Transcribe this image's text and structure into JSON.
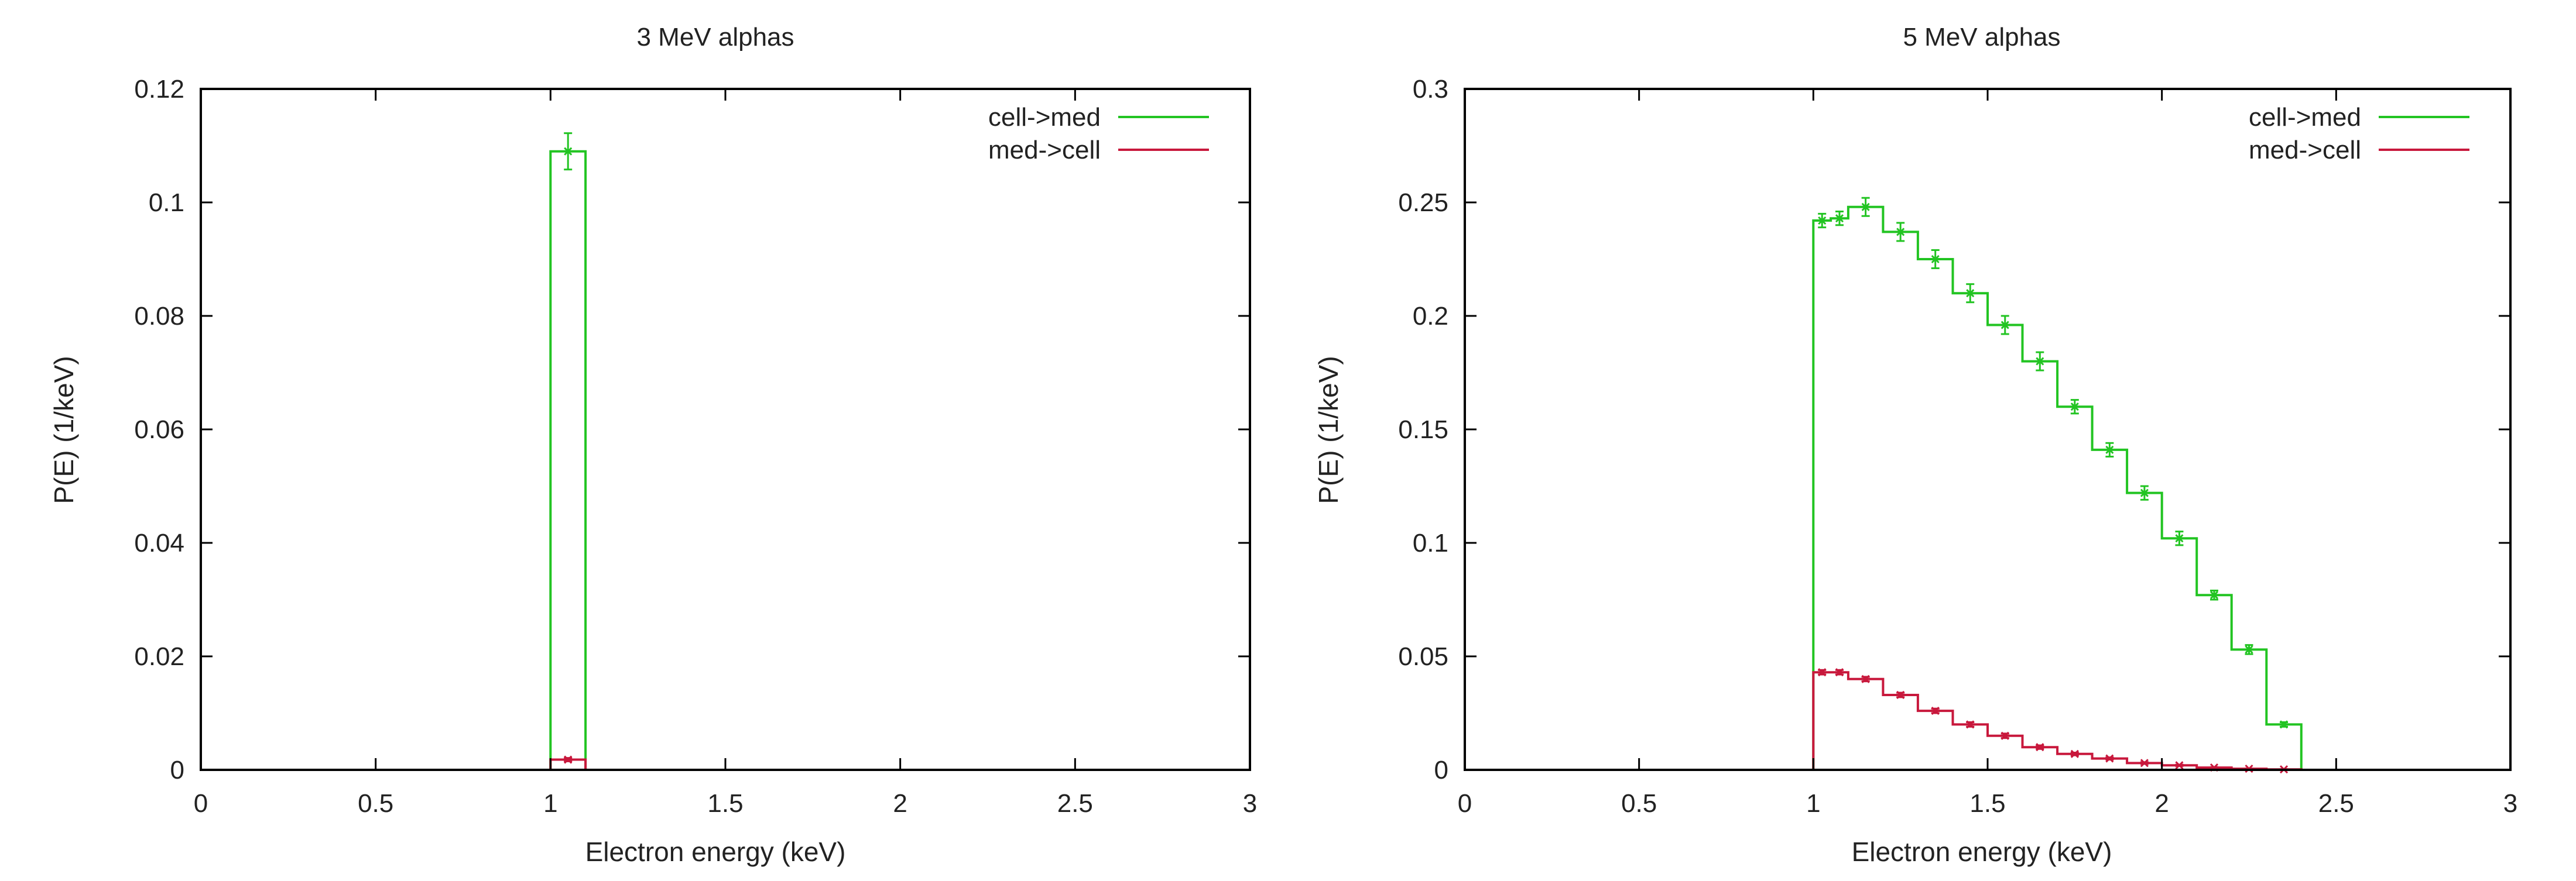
{
  "colors": {
    "cell_to_med": "#22c422",
    "med_to_cell": "#c8183c",
    "axis": "#000000",
    "background": "#ffffff"
  },
  "chart_data": [
    {
      "type": "line",
      "style": "histogram-steps-with-errorbars",
      "title": "3 MeV alphas",
      "xlabel": "Electron energy (keV)",
      "ylabel": "P(E) (1/keV)",
      "xlim": [
        0,
        3
      ],
      "ylim": [
        0,
        0.12
      ],
      "xticks": [
        "0",
        "0.5",
        "1",
        "1.5",
        "2",
        "2.5",
        "3"
      ],
      "yticks": [
        "0",
        "0.02",
        "0.04",
        "0.06",
        "0.08",
        "0.1",
        "0.12"
      ],
      "legend_position": "top-right",
      "grid": false,
      "series": [
        {
          "name": "cell->med",
          "color_key": "cell_to_med",
          "bins": [
            {
              "x0": 0,
              "x1": 1,
              "y": 0
            },
            {
              "x0": 1,
              "x1": 1.1,
              "y": 0.109,
              "err": 0.0032,
              "mid": 1.05
            },
            {
              "x0": 1.1,
              "x1": 3,
              "y": 0
            }
          ]
        },
        {
          "name": "med->cell",
          "color_key": "med_to_cell",
          "bins": [
            {
              "x0": 0,
              "x1": 1,
              "y": 0
            },
            {
              "x0": 1,
              "x1": 1.1,
              "y": 0.0018,
              "err": 0.0003,
              "mid": 1.05
            },
            {
              "x0": 1.1,
              "x1": 3,
              "y": 0
            }
          ]
        }
      ]
    },
    {
      "type": "line",
      "style": "histogram-steps-with-errorbars",
      "title": "5 MeV alphas",
      "xlabel": "Electron energy (keV)",
      "ylabel": "P(E) (1/keV)",
      "xlim": [
        0,
        3
      ],
      "ylim": [
        0,
        0.3
      ],
      "xticks": [
        "0",
        "0.5",
        "1",
        "1.5",
        "2",
        "2.5",
        "3"
      ],
      "yticks": [
        "0",
        "0.05",
        "0.1",
        "0.15",
        "0.2",
        "0.25",
        "0.3"
      ],
      "legend_position": "top-right",
      "grid": false,
      "series": [
        {
          "name": "cell->med",
          "color_key": "cell_to_med",
          "bins": [
            {
              "x0": 0,
              "x1": 1.0,
              "y": 0
            },
            {
              "x0": 1.0,
              "x1": 1.05,
              "y": 0.242,
              "err": 0.003
            },
            {
              "x0": 1.05,
              "x1": 1.1,
              "y": 0.243,
              "err": 0.003
            },
            {
              "x0": 1.1,
              "x1": 1.2,
              "y": 0.248,
              "err": 0.004
            },
            {
              "x0": 1.2,
              "x1": 1.3,
              "y": 0.237,
              "err": 0.004
            },
            {
              "x0": 1.3,
              "x1": 1.4,
              "y": 0.225,
              "err": 0.004
            },
            {
              "x0": 1.4,
              "x1": 1.5,
              "y": 0.21,
              "err": 0.004
            },
            {
              "x0": 1.5,
              "x1": 1.6,
              "y": 0.196,
              "err": 0.004
            },
            {
              "x0": 1.6,
              "x1": 1.7,
              "y": 0.18,
              "err": 0.004
            },
            {
              "x0": 1.7,
              "x1": 1.8,
              "y": 0.16,
              "err": 0.003
            },
            {
              "x0": 1.8,
              "x1": 1.9,
              "y": 0.141,
              "err": 0.003
            },
            {
              "x0": 1.9,
              "x1": 2.0,
              "y": 0.122,
              "err": 0.003
            },
            {
              "x0": 2.0,
              "x1": 2.1,
              "y": 0.102,
              "err": 0.003
            },
            {
              "x0": 2.1,
              "x1": 2.2,
              "y": 0.077,
              "err": 0.002
            },
            {
              "x0": 2.2,
              "x1": 2.3,
              "y": 0.053,
              "err": 0.002
            },
            {
              "x0": 2.3,
              "x1": 2.4,
              "y": 0.02,
              "err": 0.001
            },
            {
              "x0": 2.4,
              "x1": 3,
              "y": 0
            }
          ]
        },
        {
          "name": "med->cell",
          "color_key": "med_to_cell",
          "bins": [
            {
              "x0": 0,
              "x1": 1.0,
              "y": 0
            },
            {
              "x0": 1.0,
              "x1": 1.05,
              "y": 0.043,
              "err": 0.001
            },
            {
              "x0": 1.05,
              "x1": 1.1,
              "y": 0.043,
              "err": 0.001
            },
            {
              "x0": 1.1,
              "x1": 1.2,
              "y": 0.04,
              "err": 0.001
            },
            {
              "x0": 1.2,
              "x1": 1.3,
              "y": 0.033,
              "err": 0.001
            },
            {
              "x0": 1.3,
              "x1": 1.4,
              "y": 0.026,
              "err": 0.001
            },
            {
              "x0": 1.4,
              "x1": 1.5,
              "y": 0.02,
              "err": 0.001
            },
            {
              "x0": 1.5,
              "x1": 1.6,
              "y": 0.015,
              "err": 0.001
            },
            {
              "x0": 1.6,
              "x1": 1.7,
              "y": 0.01,
              "err": 0.0008
            },
            {
              "x0": 1.7,
              "x1": 1.8,
              "y": 0.007,
              "err": 0.0006
            },
            {
              "x0": 1.8,
              "x1": 1.9,
              "y": 0.005,
              "err": 0.0005
            },
            {
              "x0": 1.9,
              "x1": 2.0,
              "y": 0.003,
              "err": 0.0004
            },
            {
              "x0": 2.0,
              "x1": 2.1,
              "y": 0.002,
              "err": 0.0003
            },
            {
              "x0": 2.1,
              "x1": 2.2,
              "y": 0.001,
              "err": 0.0002
            },
            {
              "x0": 2.2,
              "x1": 2.3,
              "y": 0.0005,
              "err": 0.0001
            },
            {
              "x0": 2.3,
              "x1": 2.4,
              "y": 0.0002,
              "err": 0.0001
            },
            {
              "x0": 2.4,
              "x1": 3,
              "y": 0
            }
          ]
        }
      ]
    }
  ]
}
